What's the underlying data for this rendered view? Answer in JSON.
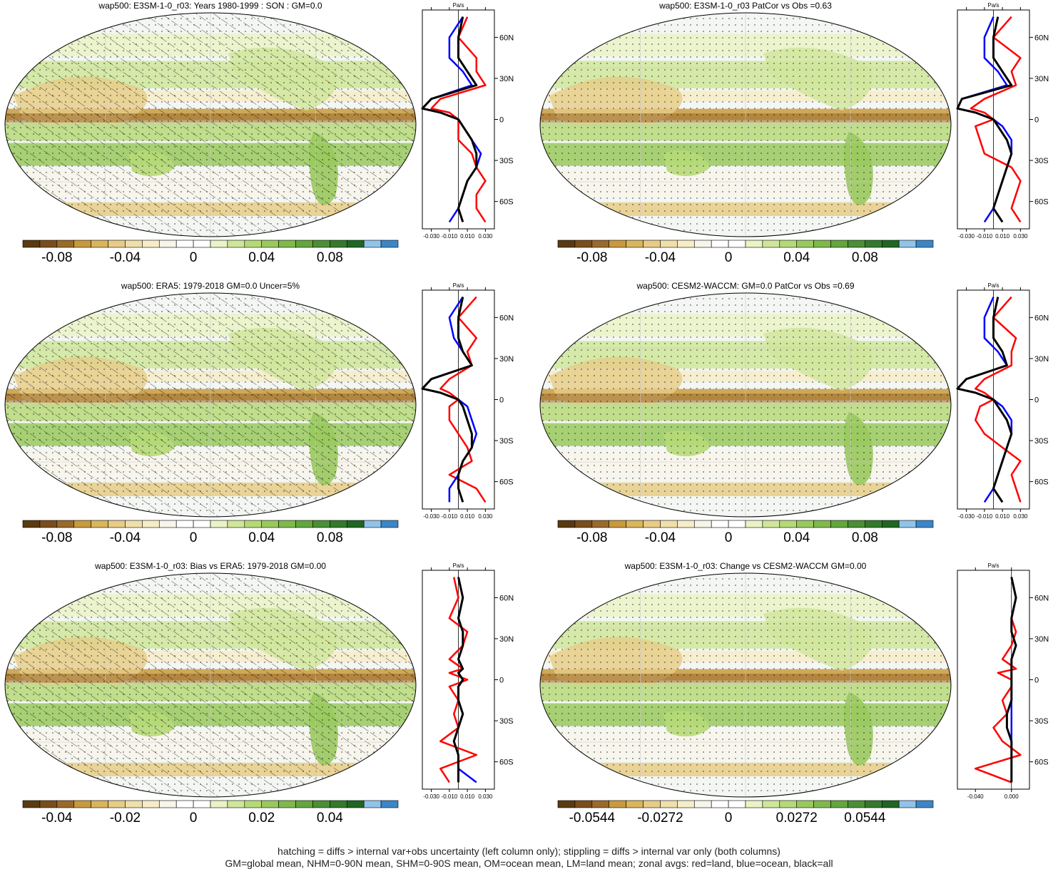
{
  "palette": [
    "#5a3a10",
    "#7a4e1c",
    "#9a6a2c",
    "#c89a3c",
    "#d9b55c",
    "#e6cc86",
    "#efdfa8",
    "#f6ecc8",
    "#f7f4ea",
    "#ffffff",
    "#ffffff",
    "#e9f3c6",
    "#cfe69a",
    "#b6d978",
    "#99c95e",
    "#7fb94c",
    "#64a63e",
    "#4b8f35",
    "#337a2c",
    "#1f6622",
    "#90c3ea",
    "#3c86c8"
  ],
  "colors": {
    "land": "#ff0000",
    "ocean": "#0000ff",
    "all": "#000000",
    "ocean_bg": "#f3f6f3"
  },
  "zonal_unit": "Pa/s",
  "panels": [
    {
      "id": "p1",
      "title": "wap500: E3SM-1-0_r03: Years 1980-1999 : SON : GM=0.0",
      "cbar_labels": [
        "-0.08",
        "-0.04",
        "0",
        "0.04",
        "0.08"
      ],
      "zonal_ticks": [
        "-0.030",
        "-0.010",
        "0.010",
        "0.030"
      ],
      "lat_ticks": [
        "60N",
        "30N",
        "0",
        "30S",
        "60S"
      ],
      "hatching": true
    },
    {
      "id": "p2",
      "title": "wap500: E3SM-1-0_r03 PatCor vs Obs =0.63",
      "cbar_labels": [
        "-0.08",
        "-0.04",
        "0",
        "0.04",
        "0.08"
      ],
      "zonal_ticks": [
        "-0.030",
        "-0.010",
        "0.010",
        "0.030"
      ],
      "lat_ticks": [
        "60N",
        "30N",
        "0",
        "30S",
        "60S"
      ],
      "hatching": false
    },
    {
      "id": "p3",
      "title": "wap500: ERA5: 1979-2018 GM=0.0 Uncer=5%",
      "cbar_labels": [
        "-0.08",
        "-0.04",
        "0",
        "0.04",
        "0.08"
      ],
      "zonal_ticks": [
        "-0.030",
        "-0.010",
        "0.010",
        "0.030"
      ],
      "lat_ticks": [
        "60N",
        "30N",
        "0",
        "30S",
        "60S"
      ],
      "hatching": true
    },
    {
      "id": "p4",
      "title": "wap500: CESM2-WACCM: GM=0.0 PatCor vs Obs =0.69",
      "cbar_labels": [
        "-0.08",
        "-0.04",
        "0",
        "0.04",
        "0.08"
      ],
      "zonal_ticks": [
        "-0.030",
        "-0.010",
        "0.010",
        "0.030"
      ],
      "lat_ticks": [
        "60N",
        "30N",
        "0",
        "30S",
        "60S"
      ],
      "hatching": false
    },
    {
      "id": "p5",
      "title": "wap500: E3SM-1-0_r03: Bias vs ERA5: 1979-2018  GM=0.00",
      "cbar_labels": [
        "-0.04",
        "-0.02",
        "0",
        "0.02",
        "0.04"
      ],
      "zonal_ticks": [
        "-0.030",
        "-0.010",
        "0.010",
        "0.030"
      ],
      "lat_ticks": [
        "60N",
        "30N",
        "0",
        "30S",
        "60S"
      ],
      "hatching": true
    },
    {
      "id": "p6",
      "title": "wap500: E3SM-1-0_r03: Change vs CESM2-WACCM GM=0.00",
      "cbar_labels": [
        "-0.0544",
        "-0.0272",
        "0",
        "0.0272",
        "0.0544"
      ],
      "zonal_ticks": [
        "-0.040",
        "0.000"
      ],
      "lat_ticks": [
        "60N",
        "30N",
        "0",
        "30S",
        "60S"
      ],
      "hatching": false
    }
  ],
  "chart_data": [
    {
      "type": "heatmap",
      "title": "wap500: E3SM-1-0_r03: Years 1980-1999 : SON : GM=0.0",
      "colorbar_ticks": [
        -0.08,
        -0.04,
        0,
        0.04,
        0.08
      ],
      "zonal_xlim": [
        -0.04,
        0.04
      ],
      "zonal_xticks": [
        -0.03,
        -0.01,
        0.01,
        0.03
      ],
      "zonal_unit": "Pa/s",
      "zonal_series": [
        {
          "name": "land",
          "lat": [
            75,
            60,
            45,
            35,
            25,
            15,
            8,
            5,
            0,
            -5,
            -15,
            -25,
            -35,
            -45,
            -55,
            -65,
            -75
          ],
          "values": [
            0.01,
            0.0,
            0.02,
            0.02,
            0.03,
            -0.02,
            -0.03,
            -0.01,
            0.0,
            0.0,
            0.0,
            0.015,
            0.02,
            0.03,
            0.02,
            0.02,
            0.03
          ]
        },
        {
          "name": "ocean",
          "lat": [
            75,
            60,
            45,
            35,
            25,
            15,
            8,
            5,
            0,
            -5,
            -15,
            -25,
            -35,
            -45,
            -55,
            -65,
            -75
          ],
          "values": [
            0.005,
            -0.01,
            -0.01,
            0.005,
            0.015,
            -0.03,
            -0.04,
            -0.02,
            0.0,
            0.005,
            0.015,
            0.025,
            0.02,
            0.01,
            0.005,
            0.0,
            -0.01
          ]
        },
        {
          "name": "all",
          "lat": [
            75,
            60,
            45,
            35,
            25,
            15,
            8,
            5,
            0,
            -5,
            -15,
            -25,
            -35,
            -45,
            -55,
            -65,
            -75
          ],
          "values": [
            0.005,
            0.0,
            0.0,
            0.01,
            0.02,
            -0.03,
            -0.04,
            -0.02,
            0.0,
            0.005,
            0.015,
            0.02,
            0.02,
            0.01,
            0.005,
            0.0,
            0.005
          ]
        }
      ]
    },
    {
      "type": "heatmap",
      "title": "wap500: E3SM-1-0_r03 PatCor vs Obs =0.63",
      "colorbar_ticks": [
        -0.08,
        -0.04,
        0,
        0.04,
        0.08
      ],
      "zonal_xlim": [
        -0.04,
        0.04
      ],
      "zonal_xticks": [
        -0.03,
        -0.01,
        0.01,
        0.03
      ],
      "zonal_unit": "Pa/s",
      "zonal_series": [
        {
          "name": "land",
          "lat": [
            75,
            60,
            45,
            35,
            25,
            15,
            8,
            5,
            0,
            -5,
            -15,
            -25,
            -35,
            -45,
            -55,
            -65,
            -75
          ],
          "values": [
            0.02,
            0.0,
            0.03,
            0.02,
            0.025,
            -0.01,
            -0.025,
            -0.01,
            0.0,
            -0.02,
            -0.015,
            -0.01,
            0.02,
            0.03,
            0.025,
            0.02,
            0.03
          ]
        },
        {
          "name": "ocean",
          "lat": [
            75,
            60,
            45,
            35,
            25,
            15,
            8,
            5,
            0,
            -5,
            -15,
            -25,
            -35,
            -45,
            -55,
            -65,
            -75
          ],
          "values": [
            0.0,
            -0.01,
            -0.01,
            0.005,
            0.015,
            -0.035,
            -0.04,
            -0.02,
            0.0,
            0.01,
            0.02,
            0.02,
            0.015,
            0.01,
            0.005,
            0.0,
            -0.01
          ]
        },
        {
          "name": "all",
          "lat": [
            75,
            60,
            45,
            35,
            25,
            15,
            8,
            5,
            0,
            -5,
            -15,
            -25,
            -35,
            -45,
            -55,
            -65,
            -75
          ],
          "values": [
            0.005,
            0.0,
            0.0,
            0.01,
            0.02,
            -0.035,
            -0.04,
            -0.02,
            0.0,
            0.005,
            0.015,
            0.02,
            0.015,
            0.01,
            0.005,
            0.0,
            0.01
          ]
        }
      ]
    },
    {
      "type": "heatmap",
      "title": "wap500: ERA5: 1979-2018 GM=0.0 Uncer=5%",
      "colorbar_ticks": [
        -0.08,
        -0.04,
        0,
        0.04,
        0.08
      ],
      "zonal_xlim": [
        -0.04,
        0.04
      ],
      "zonal_xticks": [
        -0.03,
        -0.01,
        0.01,
        0.03
      ],
      "zonal_unit": "Pa/s",
      "zonal_series": [
        {
          "name": "land",
          "lat": [
            75,
            60,
            45,
            35,
            25,
            15,
            8,
            5,
            0,
            -5,
            -15,
            -25,
            -35,
            -45,
            -55,
            -65,
            -75
          ],
          "values": [
            0.02,
            0.0,
            0.02,
            0.01,
            0.015,
            -0.01,
            -0.02,
            -0.01,
            0.0,
            -0.01,
            -0.01,
            0.0,
            0.01,
            0.015,
            -0.01,
            0.02,
            0.03
          ]
        },
        {
          "name": "ocean",
          "lat": [
            75,
            60,
            45,
            35,
            25,
            15,
            8,
            5,
            0,
            -5,
            -15,
            -25,
            -35,
            -45,
            -55,
            -65,
            -75
          ],
          "values": [
            0.005,
            -0.01,
            -0.005,
            0.005,
            0.015,
            -0.03,
            -0.04,
            -0.02,
            0.0,
            0.01,
            0.015,
            0.02,
            0.015,
            0.005,
            0.0,
            -0.01,
            -0.01
          ]
        },
        {
          "name": "all",
          "lat": [
            75,
            60,
            45,
            35,
            25,
            15,
            8,
            5,
            0,
            -5,
            -15,
            -25,
            -35,
            -45,
            -55,
            -65,
            -75
          ],
          "values": [
            0.005,
            0.0,
            0.0,
            0.005,
            0.015,
            -0.03,
            -0.04,
            -0.02,
            0.0,
            0.005,
            0.01,
            0.015,
            0.015,
            0.005,
            0.0,
            0.0,
            0.005
          ]
        }
      ]
    },
    {
      "type": "heatmap",
      "title": "wap500: CESM2-WACCM: GM=0.0 PatCor vs Obs =0.69",
      "colorbar_ticks": [
        -0.08,
        -0.04,
        0,
        0.04,
        0.08
      ],
      "zonal_xlim": [
        -0.04,
        0.04
      ],
      "zonal_xticks": [
        -0.03,
        -0.01,
        0.01,
        0.03
      ],
      "zonal_unit": "Pa/s",
      "zonal_series": [
        {
          "name": "land",
          "lat": [
            75,
            60,
            45,
            35,
            25,
            15,
            8,
            5,
            0,
            -5,
            -15,
            -25,
            -35,
            -45,
            -55,
            -65,
            -75
          ],
          "values": [
            0.02,
            0.0,
            0.025,
            0.02,
            0.02,
            -0.01,
            -0.02,
            -0.01,
            0.0,
            -0.015,
            -0.02,
            -0.01,
            0.01,
            0.03,
            0.02,
            0.025,
            0.03
          ]
        },
        {
          "name": "ocean",
          "lat": [
            75,
            60,
            45,
            35,
            25,
            15,
            8,
            5,
            0,
            -5,
            -15,
            -25,
            -35,
            -45,
            -55,
            -65,
            -75
          ],
          "values": [
            0.0,
            -0.01,
            -0.01,
            0.005,
            0.015,
            -0.03,
            -0.04,
            -0.02,
            0.0,
            0.01,
            0.02,
            0.02,
            0.015,
            0.01,
            0.005,
            0.0,
            -0.01
          ]
        },
        {
          "name": "all",
          "lat": [
            75,
            60,
            45,
            35,
            25,
            15,
            8,
            5,
            0,
            -5,
            -15,
            -25,
            -35,
            -45,
            -55,
            -65,
            -75
          ],
          "values": [
            0.005,
            0.0,
            0.0,
            0.01,
            0.015,
            -0.03,
            -0.04,
            -0.02,
            0.0,
            0.005,
            0.015,
            0.02,
            0.015,
            0.01,
            0.005,
            0.0,
            0.01
          ]
        }
      ]
    },
    {
      "type": "heatmap",
      "title": "wap500: E3SM-1-0_r03: Bias vs ERA5: 1979-2018  GM=0.00",
      "colorbar_ticks": [
        -0.04,
        -0.02,
        0,
        0.02,
        0.04
      ],
      "zonal_xlim": [
        -0.04,
        0.04
      ],
      "zonal_xticks": [
        -0.03,
        -0.01,
        0.01,
        0.03
      ],
      "zonal_unit": "Pa/s",
      "zonal_series": [
        {
          "name": "land",
          "lat": [
            75,
            60,
            45,
            35,
            25,
            15,
            8,
            5,
            0,
            -5,
            -15,
            -25,
            -35,
            -45,
            -55,
            -65,
            -75
          ],
          "values": [
            -0.005,
            0.0,
            -0.01,
            0.01,
            0.005,
            -0.01,
            0.005,
            -0.01,
            0.01,
            -0.01,
            0.0,
            -0.005,
            0.0,
            -0.02,
            0.02,
            -0.02,
            -0.01
          ]
        },
        {
          "name": "ocean",
          "lat": [
            75,
            60,
            45,
            35,
            25,
            15,
            8,
            5,
            0,
            -5,
            -15,
            -25,
            -35,
            -45,
            -55,
            -65,
            -75
          ],
          "values": [
            0.0,
            0.005,
            0.0,
            0.005,
            0.005,
            0.0,
            0.005,
            0.0,
            0.005,
            0.0,
            0.0,
            0.005,
            0.0,
            -0.005,
            0.0,
            0.0,
            0.02
          ]
        },
        {
          "name": "all",
          "lat": [
            75,
            60,
            45,
            35,
            25,
            15,
            8,
            5,
            0,
            -5,
            -15,
            -25,
            -35,
            -45,
            -55,
            -65,
            -75
          ],
          "values": [
            0.0,
            0.005,
            0.0,
            0.005,
            0.005,
            0.0,
            0.005,
            0.0,
            0.005,
            0.0,
            0.0,
            0.005,
            0.0,
            -0.005,
            0.0,
            0.0,
            0.0
          ]
        }
      ]
    },
    {
      "type": "heatmap",
      "title": "wap500: E3SM-1-0_r03: Change vs CESM2-WACCM GM=0.00",
      "colorbar_ticks": [
        -0.0544,
        -0.0272,
        0,
        0.0272,
        0.0544
      ],
      "zonal_xlim": [
        -0.06,
        0.02
      ],
      "zonal_xticks": [
        -0.04,
        0.0
      ],
      "zonal_unit": "Pa/s",
      "zonal_series": [
        {
          "name": "land",
          "lat": [
            75,
            60,
            45,
            35,
            25,
            15,
            8,
            5,
            0,
            -5,
            -15,
            -25,
            -35,
            -45,
            -55,
            -65,
            -75
          ],
          "values": [
            0.0,
            0.005,
            0.0,
            0.005,
            0.0,
            -0.01,
            0.005,
            -0.015,
            0.0,
            0.0,
            -0.01,
            -0.005,
            -0.02,
            -0.01,
            0.01,
            -0.04,
            0.0
          ]
        },
        {
          "name": "ocean",
          "lat": [
            75,
            60,
            45,
            35,
            25,
            15,
            8,
            5,
            0,
            -5,
            -15,
            -25,
            -35,
            -45,
            -55,
            -65,
            -75
          ],
          "values": [
            0.0,
            0.005,
            0.0,
            0.0,
            0.005,
            0.0,
            0.0,
            0.0,
            0.0,
            0.0,
            0.0,
            0.0,
            0.0,
            0.0,
            0.0,
            0.0,
            0.0
          ]
        },
        {
          "name": "all",
          "lat": [
            75,
            60,
            45,
            35,
            25,
            15,
            8,
            5,
            0,
            -5,
            -15,
            -25,
            -35,
            -45,
            -55,
            -65,
            -75
          ],
          "values": [
            0.0,
            0.005,
            0.0,
            0.0,
            0.005,
            0.0,
            0.0,
            0.0,
            0.0,
            0.0,
            0.0,
            -0.005,
            -0.005,
            0.0,
            0.0,
            0.0,
            0.0
          ]
        }
      ]
    }
  ],
  "footer": {
    "line1": "hatching = diffs > internal var+obs uncertainty (left column only); stippling = diffs > internal var only (both columns)",
    "line2": "GM=global mean, NHM=0-90N mean, SHM=0-90S mean, OM=ocean mean, LM=land mean; zonal avgs: red=land, blue=ocean, black=all"
  }
}
